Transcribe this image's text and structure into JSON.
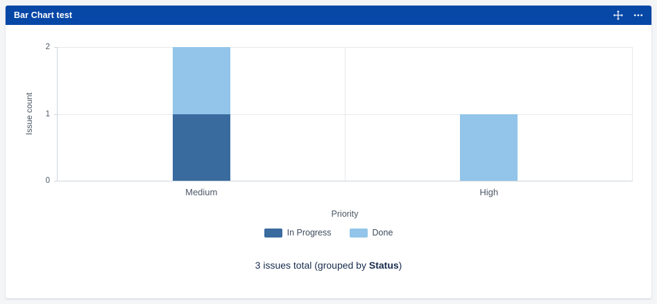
{
  "gadget": {
    "title": "Bar Chart test"
  },
  "icons": {
    "move": "four-direction-arrows",
    "more": "horizontal-ellipsis"
  },
  "chart_data": {
    "type": "bar",
    "stacked": true,
    "categories": [
      "Medium",
      "High"
    ],
    "series": [
      {
        "name": "In Progress",
        "color": "#3a6b9f",
        "values": [
          1,
          0
        ]
      },
      {
        "name": "Done",
        "color": "#92c5e9",
        "values": [
          1,
          1
        ]
      }
    ],
    "xlabel": "Priority",
    "ylabel": "Issue count",
    "ylim": [
      0,
      2
    ],
    "yticks": [
      0,
      1,
      2
    ],
    "grid": true,
    "legend_position": "bottom"
  },
  "footer": {
    "prefix": "3 issues total (grouped by ",
    "group_by": "Status",
    "suffix": ")"
  },
  "colors": {
    "header_bg": "#0747a6",
    "in_progress": "#3a6b9f",
    "done": "#92c5e9",
    "card_bg": "#ffffff",
    "page_bg": "#f4f5f7"
  }
}
